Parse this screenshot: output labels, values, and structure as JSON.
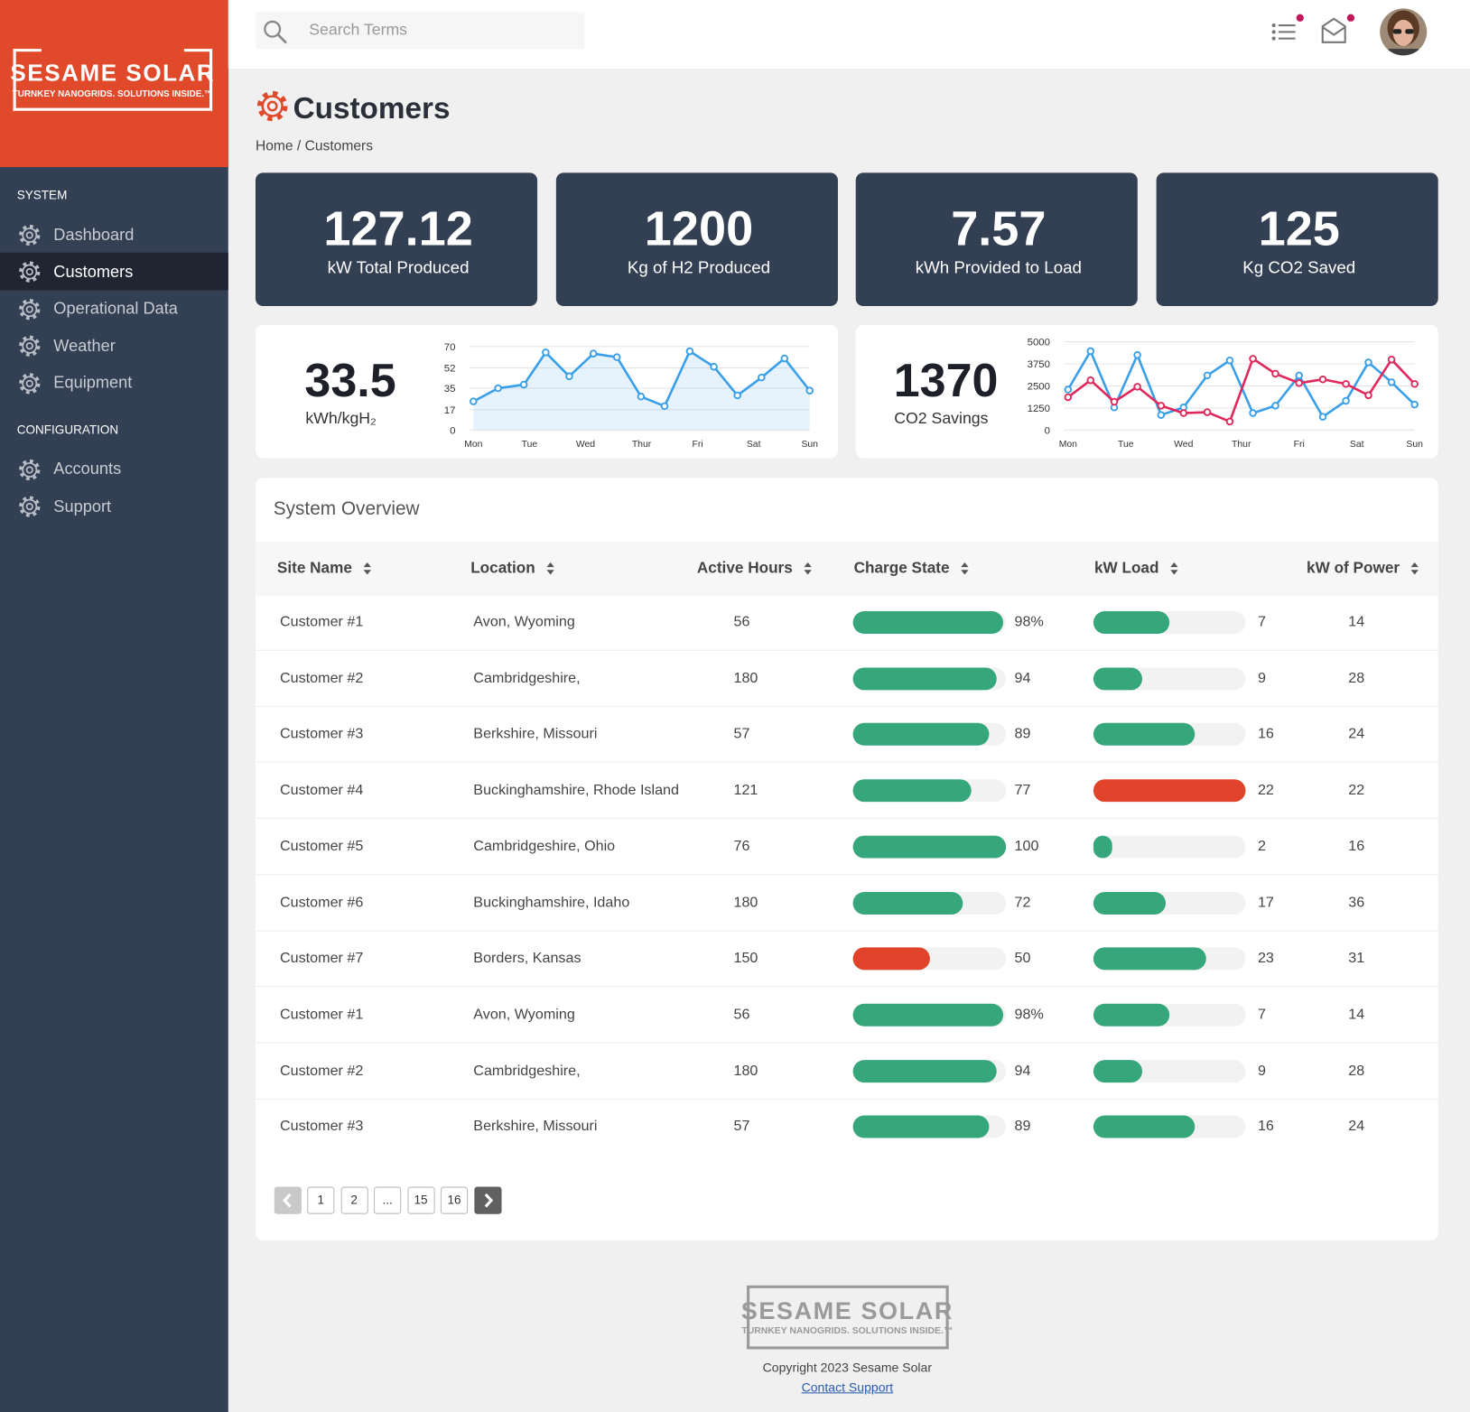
{
  "sidebar": {
    "logo": {
      "name": "SESAME SOLAR",
      "tagline": "TURNKEY NANOGRIDS. SOLUTIONS INSIDE.™"
    },
    "sections": [
      {
        "title": "SYSTEM",
        "items": [
          {
            "label": "Dashboard"
          },
          {
            "label": "Customers",
            "active": true
          },
          {
            "label": "Operational Data"
          },
          {
            "label": "Weather"
          },
          {
            "label": "Equipment"
          }
        ]
      },
      {
        "title": "CONFIGURATION",
        "items": [
          {
            "label": "Accounts"
          },
          {
            "label": "Support"
          }
        ]
      }
    ]
  },
  "topbar": {
    "search_placeholder": "Search Terms"
  },
  "header": {
    "title": "Customers",
    "breadcrumb": "Home / Customers"
  },
  "stats": [
    {
      "value": 127.12,
      "label": "kW Total Produced"
    },
    {
      "value": 1200,
      "label": "Kg of H2 Produced"
    },
    {
      "value": 7.57,
      "label": "kWh Provided to Load"
    },
    {
      "value": 125,
      "label": "Kg CO2 Saved"
    }
  ],
  "charts": [
    {
      "type": "line",
      "value": 33.5,
      "label": "kWh/kgH₂",
      "area": true,
      "categories": [
        "Mon",
        "Tue",
        "Wed",
        "Thur",
        "Fri",
        "Sat",
        "Sun"
      ],
      "xlim": [
        0,
        6
      ],
      "ylim": [
        0,
        70
      ],
      "yticks": [
        0,
        17,
        35,
        52,
        70
      ],
      "series": [
        {
          "color": "#3a9fe9",
          "x": [
            0,
            0.44,
            0.9,
            1.29,
            1.71,
            2.14,
            2.56,
            2.99,
            3.41,
            3.86,
            4.29,
            4.71,
            5.14,
            5.55,
            6
          ],
          "values": [
            24,
            35,
            38,
            65,
            45,
            64,
            61,
            28,
            20,
            66,
            53,
            29,
            44,
            60,
            33
          ]
        }
      ]
    },
    {
      "type": "line",
      "value": 1370,
      "label": "CO2 Savings",
      "area": false,
      "categories": [
        "Mon",
        "Tue",
        "Wed",
        "Thur",
        "Fri",
        "Sat",
        "Sun"
      ],
      "xlim": [
        0,
        6
      ],
      "ylim": [
        0,
        5000
      ],
      "yticks": [
        0,
        1250,
        2500,
        3750,
        5000
      ],
      "series": [
        {
          "color": "#3a9fe9",
          "x": [
            0,
            0.39,
            0.8,
            1.2,
            1.61,
            2.0,
            2.41,
            2.8,
            3.2,
            3.59,
            4.0,
            4.41,
            4.81,
            5.2,
            5.6,
            6
          ],
          "values": [
            2290,
            4470,
            1280,
            4250,
            850,
            1280,
            3090,
            3940,
            960,
            1380,
            3090,
            750,
            1650,
            3830,
            2710,
            1440
          ]
        },
        {
          "color": "#e0285a",
          "x": [
            0,
            0.39,
            0.8,
            1.2,
            1.61,
            2.0,
            2.41,
            2.8,
            3.2,
            3.59,
            4.0,
            4.41,
            4.81,
            5.2,
            5.6,
            6
          ],
          "values": [
            1860,
            2820,
            1600,
            2450,
            1380,
            960,
            1010,
            480,
            4040,
            3190,
            2660,
            2870,
            2610,
            1970,
            3990,
            2610
          ]
        }
      ]
    }
  ],
  "table": {
    "title": "System Overview",
    "columns": [
      "Site Name",
      "Location",
      "Active Hours",
      "Charge State",
      "kW Load",
      "kW of Power"
    ],
    "rows": [
      {
        "site": "Customer #1",
        "location": "Avon, Wyoming",
        "hours": 56,
        "charge": 98,
        "charge_label": "98%",
        "charge_color": "#36a77b",
        "load": 7,
        "load_color": "#36a77b",
        "power": 14
      },
      {
        "site": "Customer #2",
        "location": "Cambridgeshire,",
        "hours": 180,
        "charge": 94,
        "charge_color": "#36a77b",
        "load": 9,
        "load_color": "#36a77b",
        "power": 28
      },
      {
        "site": "Customer #3",
        "location": "Berkshire, Missouri",
        "hours": 57,
        "charge": 89,
        "charge_color": "#36a77b",
        "load": 16,
        "load_color": "#36a77b",
        "power": 24
      },
      {
        "site": "Customer #4",
        "location": "Buckinghamshire, Rhode Island",
        "hours": 121,
        "charge": 77,
        "charge_color": "#36a77b",
        "load": 22,
        "load_color": "#e0432a",
        "power": 22
      },
      {
        "site": "Customer #5",
        "location": "Cambridgeshire, Ohio",
        "hours": 76,
        "charge": 100,
        "charge_color": "#36a77b",
        "load": 2,
        "load_color": "#36a77b",
        "power": 16
      },
      {
        "site": "Customer #6",
        "location": "Buckinghamshire, Idaho",
        "hours": 180,
        "charge": 72,
        "charge_color": "#36a77b",
        "load": 17,
        "load_color": "#36a77b",
        "power": 36
      },
      {
        "site": "Customer #7",
        "location": "Borders, Kansas",
        "hours": 150,
        "charge": 50,
        "charge_color": "#e0432a",
        "load": 23,
        "load_color": "#36a77b",
        "power": 31
      },
      {
        "site": "Customer #1",
        "location": "Avon, Wyoming",
        "hours": 56,
        "charge": 98,
        "charge_label": "98%",
        "charge_color": "#36a77b",
        "load": 7,
        "load_color": "#36a77b",
        "power": 14
      },
      {
        "site": "Customer #2",
        "location": "Cambridgeshire,",
        "hours": 180,
        "charge": 94,
        "charge_color": "#36a77b",
        "load": 9,
        "load_color": "#36a77b",
        "power": 28
      },
      {
        "site": "Customer #3",
        "location": "Berkshire, Missouri",
        "hours": 57,
        "charge": 89,
        "charge_color": "#36a77b",
        "load": 16,
        "load_color": "#36a77b",
        "power": 24
      }
    ]
  },
  "pagination": [
    "1",
    "2",
    "...",
    "15",
    "16"
  ],
  "footer": {
    "logo": {
      "name": "SESAME SOLAR",
      "tagline": "TURNKEY NANOGRIDS. SOLUTIONS INSIDE.™"
    },
    "copyright": "Copyright 2023 Sesame Solar",
    "link": "Contact Support"
  }
}
